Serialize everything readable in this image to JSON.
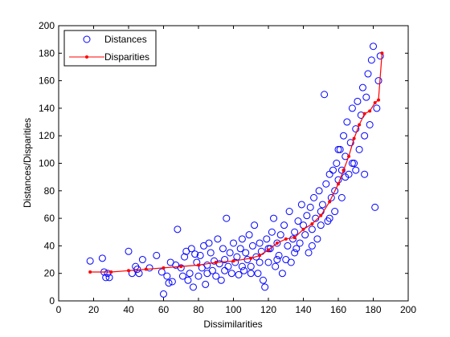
{
  "chart_data": {
    "type": "scatter",
    "xlabel": "Dissimilarities",
    "ylabel": "Distances/Disparities",
    "xlim": [
      0,
      200
    ],
    "ylim": [
      0,
      200
    ],
    "xticks": [
      "0",
      "20",
      "40",
      "60",
      "80",
      "100",
      "120",
      "140",
      "160",
      "180",
      "200"
    ],
    "yticks": [
      "0",
      "20",
      "40",
      "60",
      "80",
      "100",
      "120",
      "140",
      "160",
      "180",
      "200"
    ],
    "grid": false,
    "legend_position": "top-left",
    "series": [
      {
        "name": "Distances",
        "style": "open-circle",
        "color": "#0000ff",
        "points": [
          [
            18,
            29
          ],
          [
            25,
            31
          ],
          [
            26,
            21
          ],
          [
            27,
            17
          ],
          [
            28,
            20
          ],
          [
            29,
            17
          ],
          [
            40,
            36
          ],
          [
            42,
            20
          ],
          [
            44,
            25
          ],
          [
            45,
            23
          ],
          [
            46,
            20
          ],
          [
            48,
            30
          ],
          [
            52,
            24
          ],
          [
            56,
            33
          ],
          [
            59,
            21
          ],
          [
            60,
            5
          ],
          [
            62,
            18
          ],
          [
            63,
            13
          ],
          [
            64,
            28
          ],
          [
            65,
            14
          ],
          [
            67,
            26
          ],
          [
            68,
            52
          ],
          [
            70,
            24
          ],
          [
            71,
            18
          ],
          [
            72,
            32
          ],
          [
            73,
            36
          ],
          [
            74,
            15
          ],
          [
            75,
            20
          ],
          [
            76,
            38
          ],
          [
            77,
            10
          ],
          [
            78,
            34
          ],
          [
            79,
            28
          ],
          [
            80,
            18
          ],
          [
            81,
            33
          ],
          [
            82,
            24
          ],
          [
            83,
            40
          ],
          [
            84,
            12
          ],
          [
            85,
            26
          ],
          [
            86,
            42
          ],
          [
            87,
            35
          ],
          [
            88,
            22
          ],
          [
            89,
            29
          ],
          [
            90,
            18
          ],
          [
            91,
            45
          ],
          [
            92,
            27
          ],
          [
            93,
            15
          ],
          [
            94,
            38
          ],
          [
            95,
            30
          ],
          [
            96,
            60
          ],
          [
            97,
            25
          ],
          [
            98,
            35
          ],
          [
            99,
            20
          ],
          [
            100,
            42
          ],
          [
            101,
            28
          ],
          [
            102,
            32
          ],
          [
            103,
            19
          ],
          [
            104,
            38
          ],
          [
            105,
            45
          ],
          [
            106,
            22
          ],
          [
            107,
            35
          ],
          [
            108,
            30
          ],
          [
            109,
            48
          ],
          [
            110,
            25
          ],
          [
            111,
            40
          ],
          [
            112,
            55
          ],
          [
            113,
            32
          ],
          [
            114,
            20
          ],
          [
            115,
            42
          ],
          [
            116,
            36
          ],
          [
            117,
            15
          ],
          [
            118,
            10
          ],
          [
            119,
            45
          ],
          [
            120,
            28
          ],
          [
            121,
            38
          ],
          [
            122,
            50
          ],
          [
            123,
            60
          ],
          [
            124,
            25
          ],
          [
            125,
            42
          ],
          [
            126,
            33
          ],
          [
            127,
            48
          ],
          [
            128,
            20
          ],
          [
            129,
            55
          ],
          [
            130,
            30
          ],
          [
            131,
            40
          ],
          [
            132,
            65
          ],
          [
            133,
            28
          ],
          [
            134,
            45
          ],
          [
            135,
            50
          ],
          [
            136,
            38
          ],
          [
            137,
            58
          ],
          [
            138,
            42
          ],
          [
            139,
            70
          ],
          [
            140,
            55
          ],
          [
            141,
            48
          ],
          [
            142,
            62
          ],
          [
            143,
            35
          ],
          [
            144,
            68
          ],
          [
            145,
            52
          ],
          [
            146,
            75
          ],
          [
            147,
            60
          ],
          [
            148,
            45
          ],
          [
            149,
            80
          ],
          [
            150,
            65
          ],
          [
            151,
            70
          ],
          [
            152,
            150
          ],
          [
            153,
            85
          ],
          [
            154,
            58
          ],
          [
            155,
            92
          ],
          [
            156,
            75
          ],
          [
            157,
            95
          ],
          [
            158,
            80
          ],
          [
            159,
            100
          ],
          [
            160,
            88
          ],
          [
            161,
            110
          ],
          [
            162,
            95
          ],
          [
            163,
            120
          ],
          [
            164,
            105
          ],
          [
            165,
            130
          ],
          [
            166,
            92
          ],
          [
            167,
            115
          ],
          [
            168,
            140
          ],
          [
            169,
            100
          ],
          [
            170,
            125
          ],
          [
            171,
            145
          ],
          [
            172,
            110
          ],
          [
            173,
            135
          ],
          [
            174,
            155
          ],
          [
            175,
            120
          ],
          [
            176,
            148
          ],
          [
            177,
            165
          ],
          [
            178,
            128
          ],
          [
            179,
            175
          ],
          [
            180,
            185
          ],
          [
            181,
            68
          ],
          [
            182,
            140
          ],
          [
            183,
            160
          ],
          [
            184,
            178
          ],
          [
            168,
            100
          ],
          [
            164,
            90
          ],
          [
            158,
            65
          ],
          [
            162,
            75
          ],
          [
            170,
            95
          ],
          [
            175,
            92
          ],
          [
            160,
            110
          ],
          [
            155,
            60
          ],
          [
            150,
            55
          ],
          [
            145,
            40
          ],
          [
            135,
            35
          ],
          [
            125,
            30
          ],
          [
            115,
            28
          ],
          [
            105,
            25
          ],
          [
            95,
            22
          ],
          [
            85,
            20
          ],
          [
            110,
            20
          ],
          [
            120,
            38
          ]
        ]
      },
      {
        "name": "Disparities",
        "style": "line-dot",
        "color": "#ff0000",
        "points": [
          [
            18,
            21
          ],
          [
            30,
            21
          ],
          [
            40,
            22
          ],
          [
            50,
            23
          ],
          [
            60,
            24
          ],
          [
            70,
            25
          ],
          [
            80,
            26
          ],
          [
            90,
            28
          ],
          [
            100,
            29
          ],
          [
            110,
            31
          ],
          [
            115,
            33
          ],
          [
            120,
            37
          ],
          [
            125,
            42
          ],
          [
            130,
            45
          ],
          [
            135,
            46
          ],
          [
            140,
            52
          ],
          [
            145,
            56
          ],
          [
            150,
            62
          ],
          [
            155,
            72
          ],
          [
            160,
            85
          ],
          [
            163,
            95
          ],
          [
            166,
            105
          ],
          [
            169,
            118
          ],
          [
            172,
            128
          ],
          [
            175,
            136
          ],
          [
            178,
            138
          ],
          [
            181,
            144
          ],
          [
            183,
            146
          ],
          [
            185,
            180
          ]
        ]
      }
    ]
  }
}
